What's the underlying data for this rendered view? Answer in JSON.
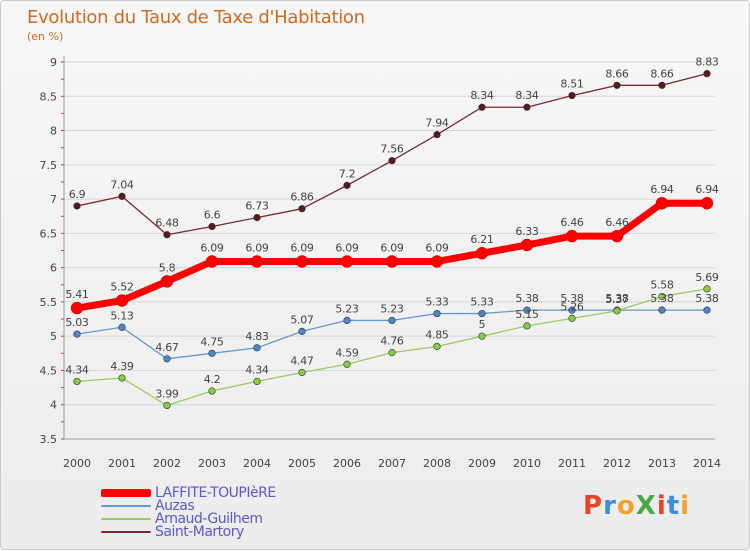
{
  "title": "Evolution du Taux de Taxe d'Habitation",
  "subtitle": "(en %)",
  "logo": {
    "text": "ProXiti",
    "colors": [
      "#e8442a",
      "#3a8fd9",
      "#f2a12c",
      "#4aa84a",
      "#e8442a",
      "#3a8fd9",
      "#f2a12c"
    ]
  },
  "chart_data": {
    "type": "line",
    "title": "Evolution du Taux de Taxe d'Habitation",
    "ylabel": "(en %)",
    "xlabel": "",
    "x": [
      2000,
      2001,
      2002,
      2003,
      2004,
      2005,
      2006,
      2007,
      2008,
      2009,
      2010,
      2011,
      2012,
      2013,
      2014
    ],
    "ylim": [
      3.5,
      9
    ],
    "yticks": [
      3.5,
      4,
      4.5,
      5,
      5.5,
      6,
      6.5,
      7,
      7.5,
      8,
      8.5,
      9
    ],
    "ytick_labels": [
      "3.5",
      "4",
      "4.5",
      "5",
      "5.5",
      "6",
      "6.5",
      "7",
      "7.5",
      "8",
      "8.5",
      "9"
    ],
    "grid": "horizontal",
    "legend_position": "bottom-left",
    "series": [
      {
        "name": "LAFFITE-TOUPIèRE",
        "color": "#ff0000",
        "values": [
          5.41,
          5.52,
          5.8,
          6.09,
          6.09,
          6.09,
          6.09,
          6.09,
          6.09,
          6.21,
          6.33,
          6.46,
          6.46,
          6.94,
          6.94
        ],
        "labels": [
          "5.41",
          "5.52",
          "5.8",
          "6.09",
          "6.09",
          "6.09",
          "6.09",
          "6.09",
          "6.09",
          "6.21",
          "6.33",
          "6.46",
          "6.46",
          "6.94",
          "6.94"
        ]
      },
      {
        "name": "Auzas",
        "color": "#6699cc",
        "values": [
          5.03,
          5.13,
          4.67,
          4.75,
          4.83,
          5.07,
          5.23,
          5.23,
          5.33,
          5.33,
          5.38,
          5.38,
          5.38,
          5.38,
          5.38
        ],
        "labels": [
          "5.03",
          "5.13",
          "4.67",
          "4.75",
          "4.83",
          "5.07",
          "5.23",
          "5.23",
          "5.33",
          "5.33",
          "5.38",
          "5.38",
          "5.38",
          "5.38",
          "5.38"
        ]
      },
      {
        "name": "Arnaud-Guilhem",
        "color": "#99cc66",
        "values": [
          4.34,
          4.39,
          3.99,
          4.2,
          4.34,
          4.47,
          4.59,
          4.76,
          4.85,
          5,
          5.15,
          5.26,
          5.37,
          5.58,
          5.69
        ],
        "labels": [
          "4.34",
          "4.39",
          "3.99",
          "4.2",
          "4.34",
          "4.47",
          "4.59",
          "4.76",
          "4.85",
          "5",
          "5.15",
          "5.26",
          "5.37",
          "5.58",
          "5.69"
        ]
      },
      {
        "name": "Saint-Martory",
        "color": "#7a2a2a",
        "values": [
          6.9,
          7.04,
          6.48,
          6.6,
          6.73,
          6.86,
          7.2,
          7.56,
          7.94,
          8.34,
          8.34,
          8.51,
          8.66,
          8.66,
          8.83
        ],
        "labels": [
          "6.9",
          "7.04",
          "6.48",
          "6.6",
          "6.73",
          "6.86",
          "7.2",
          "7.56",
          "7.94",
          "8.34",
          "8.34",
          "8.51",
          "8.66",
          "8.66",
          "8.83"
        ]
      }
    ]
  }
}
